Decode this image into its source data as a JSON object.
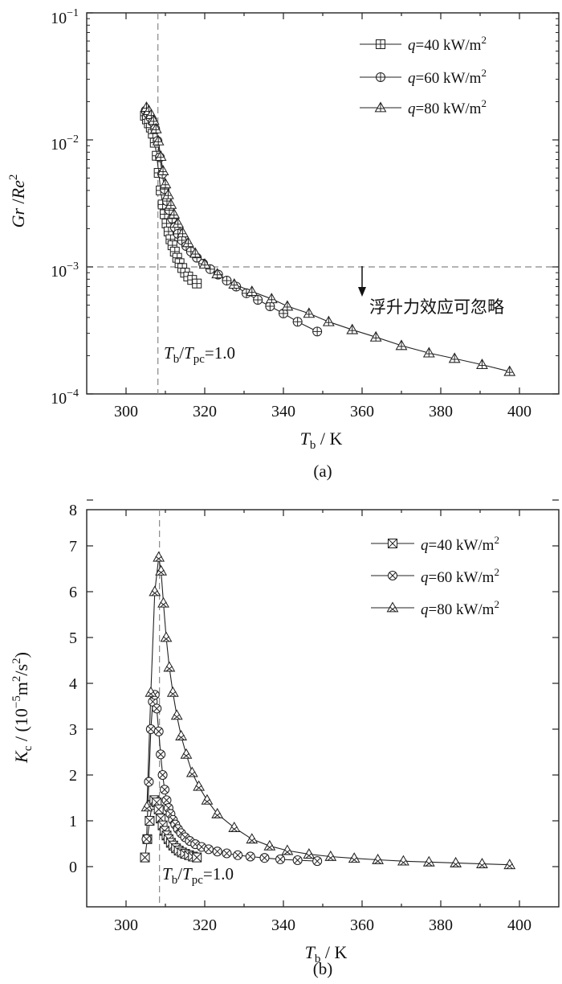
{
  "chart_data": [
    {
      "type": "line",
      "panel": "a",
      "caption": "(a)",
      "yscale": "log",
      "xlim": [
        290,
        410
      ],
      "ylim": [
        0.0001,
        0.1
      ],
      "x_ticks": [
        "300",
        "320",
        "340",
        "360",
        "380",
        "400"
      ],
      "y_ticks": [
        {
          "base": "10",
          "exp": "−1"
        },
        {
          "base": "10",
          "exp": "−2"
        },
        {
          "base": "10",
          "exp": "−3"
        },
        {
          "base": "10",
          "exp": "−4"
        }
      ],
      "ylabel": "Gr / Re²",
      "ylabel_parts": {
        "a": "Gr",
        "sep": " /",
        "b": "Re",
        "sup": "2"
      },
      "xlabel_parts": {
        "var": "T",
        "sub": "b",
        "unit": " / K"
      },
      "ref_vline_x": 308.1,
      "ref_hline_y": 0.001,
      "vline_label": {
        "t1": "T",
        "s1": "b",
        "mid": "/",
        "t2": "T",
        "s2": "pc",
        "rest": "=1.0"
      },
      "annotation": "浮升力效应可忽略",
      "legend": [
        {
          "q": "q",
          "text": "=40 kW/m",
          "sup": "2",
          "marker": "square-plus"
        },
        {
          "q": "q",
          "text": "=60 kW/m",
          "sup": "2",
          "marker": "circle-plus"
        },
        {
          "q": "q",
          "text": "=80 kW/m",
          "sup": "2",
          "marker": "triangle-plus"
        }
      ],
      "series": [
        {
          "name": "q=40 kW/m2",
          "marker": "square-plus",
          "x": [
            304.8,
            305.3,
            305.8,
            306.3,
            306.8,
            307.3,
            307.8,
            308.3,
            308.8,
            309.3,
            309.8,
            310.3,
            310.8,
            311.3,
            311.8,
            312.4,
            313.0,
            313.6,
            314.3,
            315.0,
            315.8,
            316.8,
            318.0
          ],
          "y": [
            0.0155,
            0.0145,
            0.0135,
            0.0125,
            0.0112,
            0.0095,
            0.0075,
            0.0055,
            0.004,
            0.0031,
            0.0026,
            0.0022,
            0.0019,
            0.00165,
            0.00148,
            0.00132,
            0.00118,
            0.00107,
            0.00098,
            0.0009,
            0.00084,
            0.00079,
            0.00074
          ]
        },
        {
          "name": "q=60 kW/m2",
          "marker": "circle-plus",
          "x": [
            305.0,
            305.6,
            306.2,
            306.8,
            307.4,
            308.0,
            308.6,
            309.2,
            309.8,
            310.4,
            311.0,
            311.7,
            312.4,
            313.2,
            314.2,
            315.3,
            316.5,
            318.0,
            319.6,
            321.4,
            323.4,
            325.6,
            328.0,
            330.6,
            333.5,
            336.6,
            340.0,
            343.6,
            348.6
          ],
          "y": [
            0.017,
            0.016,
            0.015,
            0.0138,
            0.0122,
            0.0098,
            0.0073,
            0.0054,
            0.0041,
            0.0033,
            0.0028,
            0.0024,
            0.00205,
            0.00182,
            0.00162,
            0.00146,
            0.00132,
            0.00118,
            0.00106,
            0.00096,
            0.00087,
            0.00078,
            0.0007,
            0.00062,
            0.00055,
            0.00049,
            0.00043,
            0.00037,
            0.00031
          ]
        },
        {
          "name": "q=80 kW/m2",
          "marker": "triangle-plus",
          "x": [
            305.2,
            305.8,
            306.4,
            307.0,
            307.6,
            308.2,
            308.8,
            309.4,
            310.0,
            310.7,
            311.4,
            312.2,
            313.2,
            314.4,
            315.8,
            317.6,
            320.0,
            323.2,
            327.5,
            332.0,
            337.0,
            341.0,
            346.5,
            351.5,
            357.5,
            363.5,
            370.0,
            377.0,
            383.5,
            390.5,
            397.5
          ],
          "y": [
            0.018,
            0.017,
            0.0158,
            0.0142,
            0.0122,
            0.0098,
            0.0074,
            0.0057,
            0.0045,
            0.0037,
            0.0031,
            0.0026,
            0.0022,
            0.00185,
            0.00155,
            0.00128,
            0.00105,
            0.00088,
            0.00073,
            0.00064,
            0.00056,
            0.00049,
            0.00043,
            0.00037,
            0.00032,
            0.00028,
            0.00024,
            0.00021,
            0.00019,
            0.00017,
            0.00015
          ]
        }
      ]
    },
    {
      "type": "line",
      "panel": "b",
      "caption": "(b)",
      "yscale": "linear",
      "xlim": [
        290,
        410
      ],
      "ylim": [
        -0.7,
        8
      ],
      "x_ticks": [
        "300",
        "320",
        "340",
        "360",
        "380",
        "400"
      ],
      "y_ticks": [
        "0",
        "1",
        "2",
        "3",
        "4",
        "5",
        "6",
        "7",
        "8"
      ],
      "ylabel": "Kc / (10−5m2/s2)",
      "ylabel_parts": {
        "var": "K",
        "sub": "c",
        "pre": " / (10",
        "exp": "−5",
        "mid": "m",
        "sup1": "2",
        "slash": "/s",
        "sup2": "2",
        "end": ")"
      },
      "xlabel_parts": {
        "var": "T",
        "sub": "b",
        "unit": " / K"
      },
      "ref_vline_x": 308.5,
      "vline_label": {
        "t1": "T",
        "s1": "b",
        "mid": "/",
        "t2": "T",
        "s2": "pc",
        "rest": "=1.0"
      },
      "legend": [
        {
          "q": "q",
          "text": "=40 kW/m",
          "sup": "2",
          "marker": "square-x"
        },
        {
          "q": "q",
          "text": "=60 kW/m",
          "sup": "2",
          "marker": "circle-x"
        },
        {
          "q": "q",
          "text": "=80 kW/m",
          "sup": "2",
          "marker": "triangle-x"
        }
      ],
      "series": [
        {
          "name": "q=40 kW/m2",
          "marker": "square-x",
          "x": [
            304.8,
            305.4,
            306.0,
            306.6,
            307.2,
            307.8,
            308.3,
            308.8,
            309.3,
            309.8,
            310.3,
            310.8,
            311.4,
            312.0,
            312.7,
            313.4,
            314.2,
            315.0,
            316.0,
            317.0,
            318.0
          ],
          "y": [
            0.2,
            0.6,
            1.0,
            1.35,
            1.45,
            1.4,
            1.25,
            1.05,
            0.9,
            0.78,
            0.68,
            0.6,
            0.52,
            0.46,
            0.4,
            0.35,
            0.31,
            0.28,
            0.25,
            0.22,
            0.2
          ]
        },
        {
          "name": "q=60 kW/m2",
          "marker": "circle-x",
          "x": [
            305.2,
            305.8,
            306.3,
            306.8,
            307.3,
            307.8,
            308.3,
            308.8,
            309.3,
            309.8,
            310.3,
            310.8,
            311.3,
            311.9,
            312.5,
            313.2,
            314.0,
            315.0,
            316.2,
            317.6,
            319.2,
            321.0,
            323.2,
            325.6,
            328.4,
            331.6,
            335.2,
            339.2,
            343.6,
            348.6
          ],
          "y": [
            0.6,
            1.85,
            3.0,
            3.6,
            3.75,
            3.45,
            2.95,
            2.45,
            2.0,
            1.68,
            1.45,
            1.28,
            1.15,
            1.02,
            0.92,
            0.82,
            0.73,
            0.64,
            0.56,
            0.49,
            0.43,
            0.38,
            0.33,
            0.29,
            0.25,
            0.22,
            0.19,
            0.16,
            0.14,
            0.12
          ]
        },
        {
          "name": "q=80 kW/m2",
          "marker": "triangle-x",
          "x": [
            305.3,
            306.3,
            307.3,
            308.3,
            308.9,
            309.5,
            310.2,
            311.0,
            311.9,
            312.9,
            314.0,
            315.3,
            316.8,
            318.5,
            320.6,
            323.2,
            327.5,
            332.0,
            336.5,
            341.0,
            346.5,
            352.0,
            358.0,
            364.0,
            370.5,
            377.0,
            383.8,
            390.5,
            397.5
          ],
          "y": [
            1.3,
            3.8,
            6.0,
            6.75,
            6.45,
            5.75,
            5.0,
            4.35,
            3.8,
            3.3,
            2.85,
            2.45,
            2.05,
            1.75,
            1.45,
            1.15,
            0.85,
            0.6,
            0.45,
            0.35,
            0.27,
            0.22,
            0.18,
            0.15,
            0.12,
            0.1,
            0.08,
            0.06,
            0.04
          ]
        }
      ]
    }
  ]
}
